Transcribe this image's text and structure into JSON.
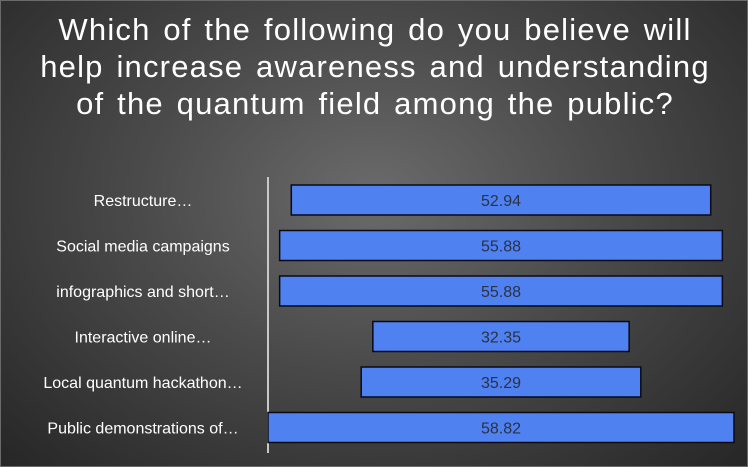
{
  "chart_data": {
    "type": "bar",
    "orientation": "horizontal",
    "title": "Which of the following do you believe will help increase awareness and understanding of the quantum field among the public?",
    "categories": [
      "Restructure…",
      "Social media campaigns",
      "infographics and short…",
      "Interactive online…",
      "Local quantum hackathon…",
      "Public demonstrations of…"
    ],
    "values": [
      52.94,
      55.88,
      55.88,
      32.35,
      35.29,
      58.82
    ],
    "data_labels": [
      "52.94",
      "55.88",
      "55.88",
      "32.35",
      "35.29",
      "58.82"
    ],
    "xlim": [
      0,
      58.82
    ],
    "bar_alignment": "centered",
    "grid": false,
    "legend": "none",
    "colors": {
      "bar_fill": "#4f81f0",
      "bar_stroke": "#0a0a14",
      "label_text": "#2a3246",
      "category_text": "#ffffff",
      "axis_line": "#c8c8c8"
    }
  }
}
